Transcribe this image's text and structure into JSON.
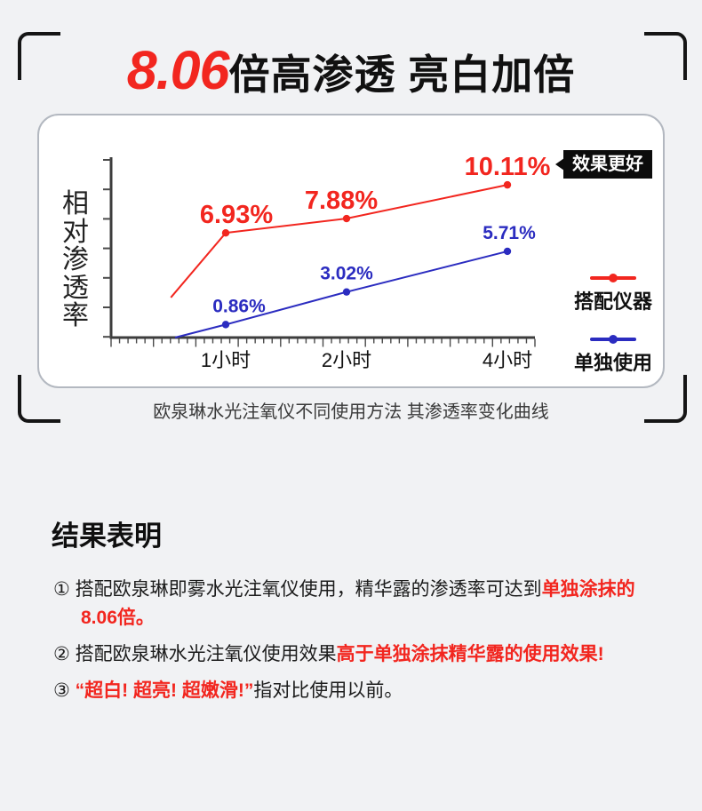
{
  "page": {
    "title_highlight": "8.06",
    "title_rest": "倍高渗透 亮白加倍",
    "badge": "效果更好",
    "caption": "欧泉琳水光注氧仪不同使用方法 其渗透率变化曲线",
    "results_heading": "结果表明",
    "results": [
      {
        "num": "①",
        "parts": [
          {
            "text": "搭配欧泉琳即雾水光注氧仪使用，精华露的渗透率可达到",
            "style": "normal"
          },
          {
            "text": "单独涂抹的8.06倍。",
            "style": "red"
          }
        ]
      },
      {
        "num": "②",
        "parts": [
          {
            "text": "搭配欧泉琳水光注氧仪使用效果",
            "style": "normal"
          },
          {
            "text": "高于单独涂抹精华露的使用效果!",
            "style": "red"
          }
        ]
      },
      {
        "num": "③",
        "parts": [
          {
            "text": "“超白! 超亮! 超嫩滑!”",
            "style": "red"
          },
          {
            "text": "指对比使用以前。",
            "style": "normal"
          }
        ]
      }
    ]
  },
  "colors": {
    "accent_red": "#f2261f",
    "accent_blue": "#2b2cc0",
    "background": "#f1f2f4",
    "badge_bg": "#0c0c0c",
    "card_border": "#b3b8c0"
  },
  "chart_data": {
    "type": "line",
    "title": "8.06倍高渗透 亮白加倍",
    "caption": "欧泉琳水光注氧仪不同使用方法 其渗透率变化曲线",
    "categories": [
      "1小时",
      "2小时",
      "4小时"
    ],
    "xlabel": "",
    "ylabel": "相对渗透率",
    "unit": "%",
    "ylim": [
      0,
      12
    ],
    "grid": false,
    "legend_position": "right",
    "annotation": "效果更好",
    "series": [
      {
        "name": "搭配仪器",
        "color": "#f2261f",
        "values": [
          6.93,
          7.88,
          10.11
        ],
        "labels": [
          "6.93%",
          "7.88%",
          "10.11%"
        ],
        "tail": {
          "x_frac": 0.141,
          "value": 2.65
        }
      },
      {
        "name": "单独使用",
        "color": "#2b2cc0",
        "values": [
          0.86,
          3.02,
          5.71
        ],
        "labels": [
          "0.86%",
          "3.02%",
          "5.71%"
        ],
        "tail": {
          "x_frac": 0.151,
          "value": 0
        }
      }
    ]
  }
}
